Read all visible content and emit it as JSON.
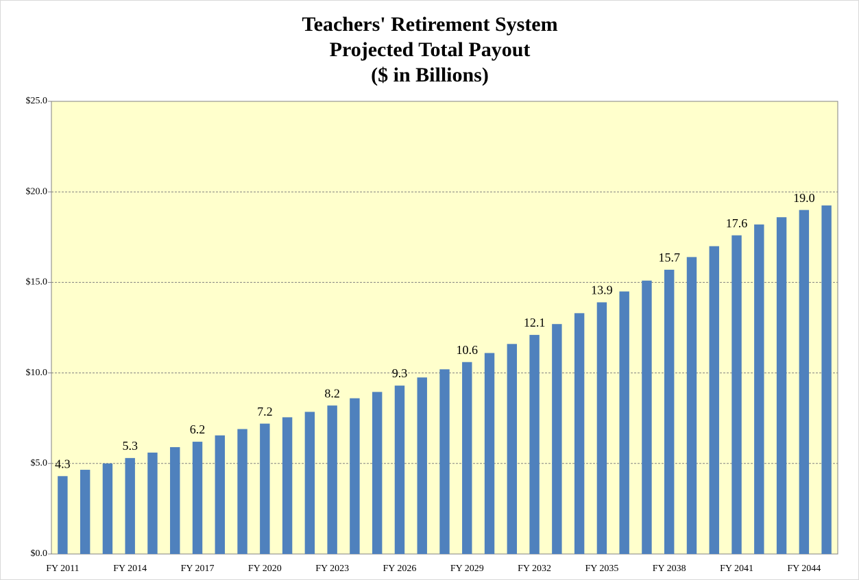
{
  "chart_data": {
    "type": "bar",
    "title": [
      "Teachers' Retirement System",
      "Projected Total Payout",
      "($ in Billions)"
    ],
    "categories": [
      "FY 2011",
      null,
      null,
      "FY 2014",
      null,
      null,
      "FY 2017",
      null,
      null,
      "FY 2020",
      null,
      null,
      "FY 2023",
      null,
      null,
      "FY 2026",
      null,
      null,
      "FY 2029",
      null,
      null,
      "FY 2032",
      null,
      null,
      "FY 2035",
      null,
      null,
      "FY 2038",
      null,
      null,
      "FY 2041",
      null,
      null,
      "FY 2044",
      null
    ],
    "values": [
      4.3,
      4.65,
      5.0,
      5.3,
      5.6,
      5.9,
      6.2,
      6.55,
      6.9,
      7.2,
      7.55,
      7.85,
      8.2,
      8.6,
      8.95,
      9.3,
      9.75,
      10.2,
      10.6,
      11.1,
      11.6,
      12.1,
      12.7,
      13.3,
      13.9,
      14.5,
      15.1,
      15.7,
      16.4,
      17.0,
      17.6,
      18.2,
      18.6,
      19.0,
      19.25
    ],
    "value_labels": [
      "4.3",
      null,
      null,
      "5.3",
      null,
      null,
      "6.2",
      null,
      null,
      "7.2",
      null,
      null,
      "8.2",
      null,
      null,
      "9.3",
      null,
      null,
      "10.6",
      null,
      null,
      "12.1",
      null,
      null,
      "13.9",
      null,
      null,
      "15.7",
      null,
      null,
      "17.6",
      null,
      null,
      "19.0",
      null
    ],
    "color": "#4f81bd",
    "ylim": [
      0,
      25
    ],
    "yticks": [
      {
        "value": 0,
        "label": "$0.0"
      },
      {
        "value": 5,
        "label": "$5.0"
      },
      {
        "value": 10,
        "label": "$10.0"
      },
      {
        "value": 15,
        "label": "$15.0"
      },
      {
        "value": 20,
        "label": "$20.0"
      },
      {
        "value": 25,
        "label": "$25.0"
      }
    ],
    "grid": true
  }
}
